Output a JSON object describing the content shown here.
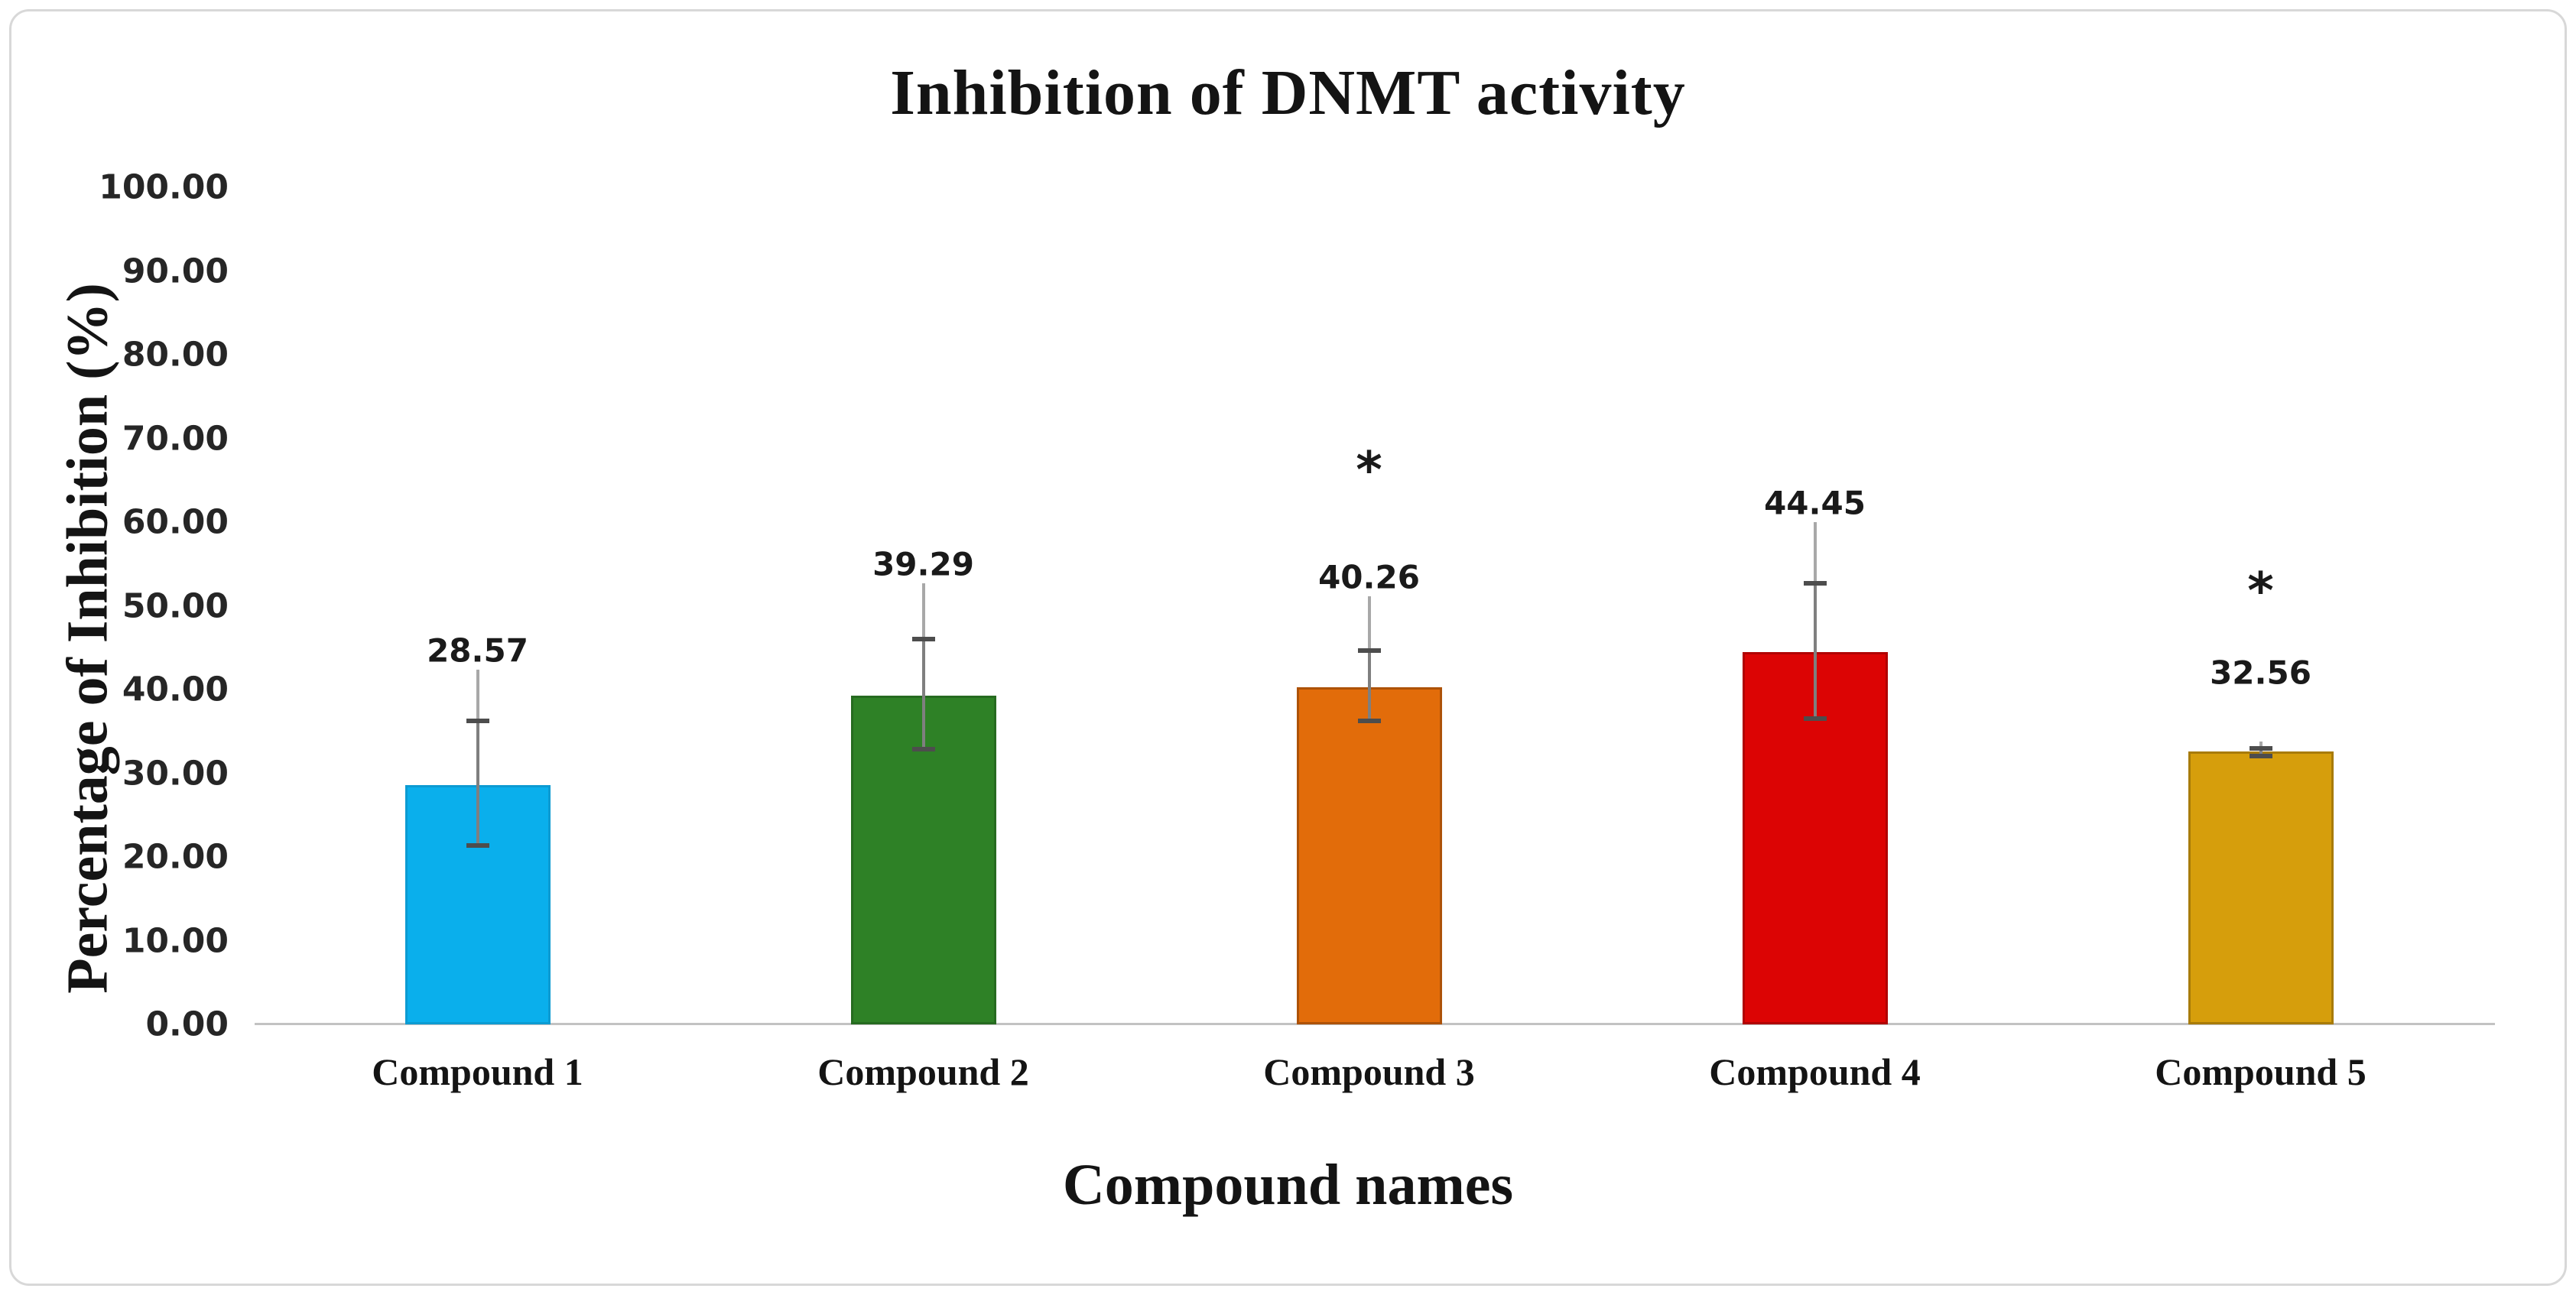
{
  "title": "Inhibition of DNMT activity",
  "y_axis": {
    "title": "Percentage of Inhibition (%)",
    "ticks": [
      "100.00",
      "90.00",
      "80.00",
      "70.00",
      "60.00",
      "50.00",
      "40.00",
      "30.00",
      "20.00",
      "10.00",
      "0.00"
    ]
  },
  "x_axis": {
    "title": "Compound names"
  },
  "bars": [
    {
      "category": "Compound 1",
      "label": "28.57",
      "value": 28.57,
      "fill": "#0aafec",
      "edge": "#0c9bd2",
      "label_y": 44.7,
      "asterisk": "",
      "asterisk_y": 0,
      "err_line_top": 42.4,
      "err_cap_high": 36.3,
      "err_cap_low": 21.4
    },
    {
      "category": "Compound 2",
      "label": "39.29",
      "value": 39.29,
      "fill": "#2e8126",
      "edge": "#266b20",
      "label_y": 55.0,
      "asterisk": "",
      "asterisk_y": 0,
      "err_line_top": 52.7,
      "err_cap_high": 46.0,
      "err_cap_low": 32.9
    },
    {
      "category": "Compound 3",
      "label": "40.26",
      "value": 40.26,
      "fill": "#e26c0a",
      "edge": "#ad5208",
      "label_y": 53.4,
      "asterisk": "*",
      "asterisk_y": 66.2,
      "err_line_top": 51.1,
      "err_cap_high": 44.7,
      "err_cap_low": 36.3
    },
    {
      "category": "Compound 4",
      "label": "44.45",
      "value": 44.45,
      "fill": "#dc0404",
      "edge": "#b00303",
      "label_y": 62.3,
      "asterisk": "",
      "asterisk_y": 0,
      "err_line_top": 60.0,
      "err_cap_high": 52.7,
      "err_cap_low": 36.5
    },
    {
      "category": "Compound 5",
      "label": "32.56",
      "value": 32.56,
      "fill": "#d69e0c",
      "edge": "#a87b09",
      "label_y": 42.0,
      "asterisk": "*",
      "asterisk_y": 51.8,
      "err_line_top": 33.8,
      "err_cap_high": 33.0,
      "err_cap_low": 32.1
    }
  ],
  "chart_data": {
    "type": "bar",
    "title": "Inhibition of DNMT activity",
    "xlabel": "Compound names",
    "ylabel": "Percentage of Inhibition (%)",
    "categories": [
      "Compound 1",
      "Compound 2",
      "Compound 3",
      "Compound 4",
      "Compound 5"
    ],
    "values": [
      28.57,
      39.29,
      40.26,
      44.45,
      32.56
    ],
    "data_labels": [
      "28.57",
      "39.29",
      "40.26",
      "44.45",
      "32.56"
    ],
    "significance_markers": [
      "",
      "",
      "*",
      "",
      "*"
    ],
    "bar_colors": [
      "#0aafec",
      "#2e8126",
      "#e26c0a",
      "#dc0404",
      "#d69e0c"
    ],
    "error_bars": [
      {
        "upper_cap": 36.3,
        "lower_cap": 21.4,
        "whisker_top": 42.4
      },
      {
        "upper_cap": 46.0,
        "lower_cap": 32.9,
        "whisker_top": 52.7
      },
      {
        "upper_cap": 44.7,
        "lower_cap": 36.3,
        "whisker_top": 51.1
      },
      {
        "upper_cap": 52.7,
        "lower_cap": 36.5,
        "whisker_top": 60.0
      },
      {
        "upper_cap": 33.0,
        "lower_cap": 32.1,
        "whisker_top": 33.8
      }
    ],
    "ylim": [
      0,
      100
    ],
    "ytick_step": 10,
    "grid": false,
    "legend": "none"
  }
}
